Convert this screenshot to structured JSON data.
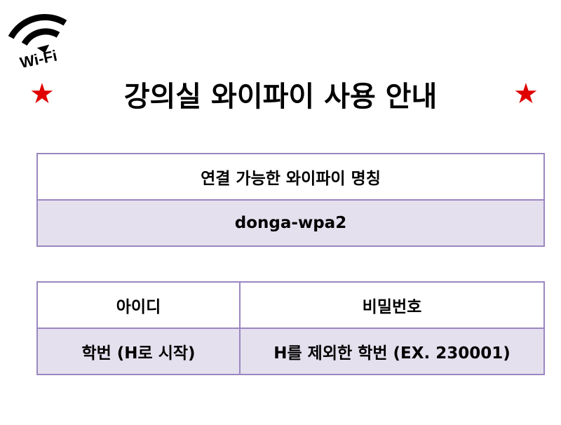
{
  "logo": {
    "text": "Wi-Fi",
    "icon": "wifi-icon"
  },
  "title": "강의실 와이파이 사용 안내",
  "star": "★",
  "colors": {
    "star": "#e00000",
    "border": "#9b87c0",
    "fill": "#e5e0ee"
  },
  "network": {
    "header": "연결 가능한 와이파이 명칭",
    "value": "donga-wpa2"
  },
  "credentials": {
    "headers": [
      "아이디",
      "비밀번호"
    ],
    "values": [
      "학번 (H로 시작)",
      "H를 제외한 학번 (EX. 230001)"
    ]
  }
}
